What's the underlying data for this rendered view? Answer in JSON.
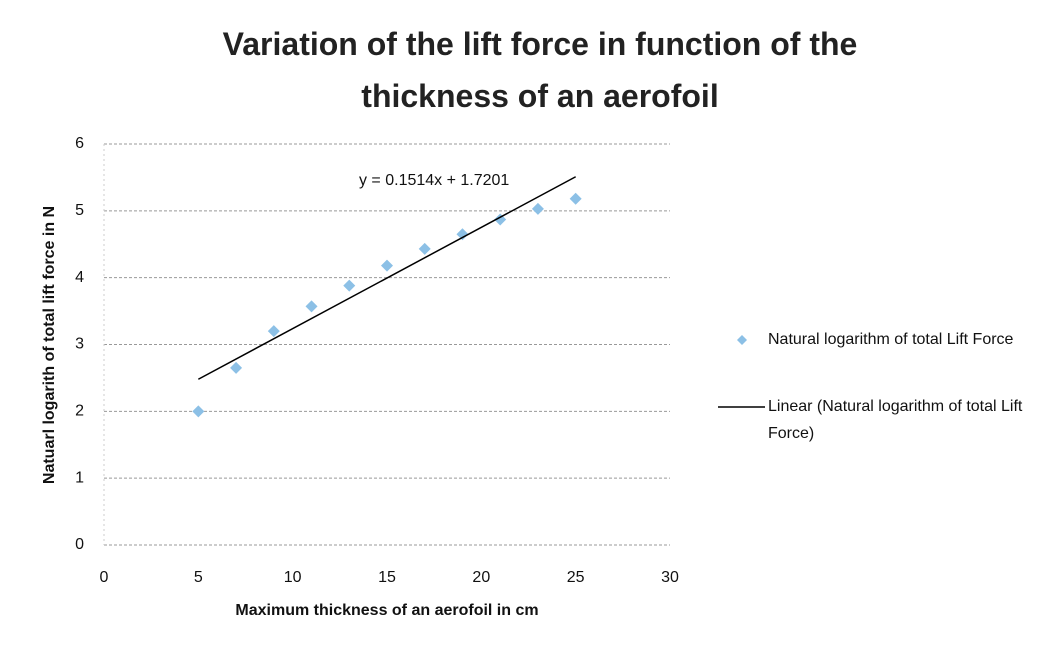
{
  "chart_data": {
    "type": "scatter",
    "title": "Variation of the lift force in function of the thickness of an aerofoil",
    "xlabel": "Maximum thickness of an aerofoil in cm",
    "ylabel": "Natuarl logarith of total lift force in N",
    "xlim": [
      0,
      30
    ],
    "xticks": [
      0,
      5,
      10,
      15,
      20,
      25,
      30
    ],
    "ylim": [
      0,
      6
    ],
    "yticks": [
      0,
      1,
      2,
      3,
      4,
      5,
      6
    ],
    "grid": true,
    "legend": "right",
    "series": [
      {
        "name": "Natural logarithm of total Lift Force",
        "color": "#8cc0e6",
        "type": "scatter",
        "x": [
          5,
          7,
          9,
          11,
          13,
          15,
          17,
          19,
          21,
          23,
          25
        ],
        "values": [
          2.0,
          2.65,
          3.2,
          3.57,
          3.88,
          4.18,
          4.43,
          4.65,
          4.87,
          5.03,
          5.18
        ]
      },
      {
        "name": "Linear (Natural logarithm of total Lift Force)",
        "color": "#000000",
        "type": "line",
        "x": [
          5,
          25
        ],
        "values": [
          2.48,
          5.51
        ]
      }
    ],
    "annotations": [
      {
        "text": "y = 0.1514x + 1.7201",
        "x": 17.5,
        "y": 5.45
      }
    ]
  }
}
